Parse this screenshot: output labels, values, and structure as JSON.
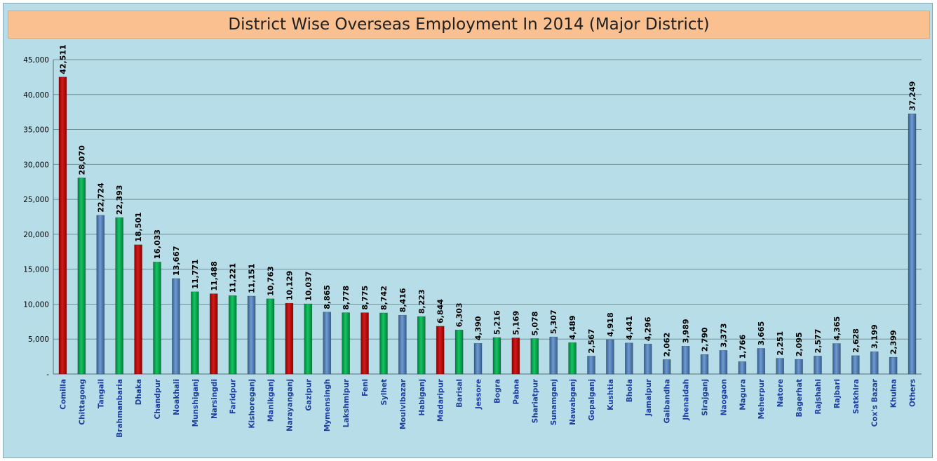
{
  "chart_data": {
    "type": "bar",
    "title": "District Wise Overseas Employment In 2014 (Major District)",
    "xlabel": "",
    "ylabel": "",
    "ylim": [
      0,
      45000
    ],
    "yticks": [
      0,
      5000,
      10000,
      15000,
      20000,
      25000,
      30000,
      35000,
      40000,
      45000
    ],
    "ytick_labels": [
      "-",
      "5,000",
      "10,000",
      "15,000",
      "20,000",
      "25,000",
      "30,000",
      "35,000",
      "40,000",
      "45,000"
    ],
    "grid": true,
    "legend": "none",
    "colors": {
      "red": "#c00000",
      "green": "#00b050",
      "blue": "#4f81bd",
      "background": "#b7dde8",
      "title_bar": "#fac090"
    },
    "categories": [
      "Comilla",
      "Chittagong",
      "Tangail",
      "Brahmanbaria",
      "Dhaka",
      "Chandpur",
      "Noakhali",
      "Munshiganj",
      "Narsingdi",
      "Faridpur",
      "Kishoreganj",
      "Manikganj",
      "Narayanganj",
      "Gazipur",
      "Mymensingh",
      "Lakshmipur",
      "Feni",
      "Sylhet",
      "Moulvibazar",
      "Habiganj",
      "Madaripur",
      "Barisal",
      "Jessore",
      "Bogra",
      "Pabna",
      "Shariatpur",
      "Sunamganj",
      "Nawabganj",
      "Gopalganj",
      "Kushtia",
      "Bhola",
      "Jamalpur",
      "Gaibandha",
      "Jhenaidah",
      "Sirajganj",
      "Naogaon",
      "Magura",
      "Meherpur",
      "Natore",
      "Bagerhat",
      "Rajshahi",
      "Rajbari",
      "Satkhira",
      "Cox's Bazar",
      "Khulna",
      "Others"
    ],
    "values": [
      42511,
      28070,
      22724,
      22393,
      18501,
      16033,
      13667,
      11771,
      11488,
      11221,
      11151,
      10763,
      10129,
      10037,
      8865,
      8778,
      8775,
      8742,
      8416,
      8223,
      6844,
      6303,
      4390,
      5216,
      5169,
      5078,
      5307,
      4489,
      2567,
      4918,
      4441,
      4296,
      2062,
      3989,
      2790,
      3373,
      1766,
      3665,
      2251,
      2095,
      2577,
      4365,
      2628,
      3199,
      2399,
      37249
    ],
    "value_labels": [
      "42,511",
      "28,070",
      "22,724",
      "22,393",
      "18,501",
      "16,033",
      "13,667",
      "11,771",
      "11,488",
      "11,221",
      "11,151",
      "10,763",
      "10,129",
      "10,037",
      "8,865",
      "8,778",
      "8,775",
      "8,742",
      "8,416",
      "8,223",
      "6,844",
      "6,303",
      "4,390",
      "5,216",
      "5,169",
      "5,078",
      "5,307",
      "4,489",
      "2,567",
      "4,918",
      "4,441",
      "4,296",
      "2,062",
      "3,989",
      "2,790",
      "3,373",
      "1,766",
      "3,665",
      "2,251",
      "2,095",
      "2,577",
      "4,365",
      "2,628",
      "3,199",
      "2,399",
      "37,249"
    ],
    "bar_colors": [
      "red",
      "green",
      "blue",
      "green",
      "red",
      "green",
      "blue",
      "green",
      "red",
      "green",
      "blue",
      "green",
      "red",
      "green",
      "blue",
      "green",
      "red",
      "green",
      "blue",
      "green",
      "red",
      "green",
      "blue",
      "green",
      "red",
      "green",
      "blue",
      "green",
      "blue",
      "blue",
      "blue",
      "blue",
      "blue",
      "blue",
      "blue",
      "blue",
      "blue",
      "blue",
      "blue",
      "blue",
      "blue",
      "blue",
      "blue",
      "blue",
      "blue",
      "blue"
    ]
  }
}
